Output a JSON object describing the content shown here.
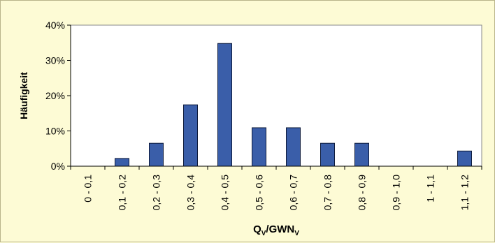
{
  "chart_data": {
    "type": "bar",
    "categories": [
      "0 - 0,1",
      "0,1 - 0,2",
      "0,2 - 0,3",
      "0,3 - 0,4",
      "0,4 - 0,5",
      "0,5 - 0,6",
      "0,6 - 0,7",
      "0,7 - 0,8",
      "0,8 - 0,9",
      "0,9 - 1,0",
      "1 - 1,1",
      "1,1 - 1,2"
    ],
    "values": [
      0,
      2.2,
      6.5,
      17.4,
      34.8,
      10.9,
      10.9,
      6.5,
      6.5,
      0,
      0,
      4.3
    ],
    "ylim": [
      0,
      40
    ],
    "yticks": [
      0,
      10,
      20,
      30,
      40
    ],
    "ytick_labels": [
      "0%",
      "10%",
      "20%",
      "30%",
      "40%"
    ],
    "ylabel": "Häufigkeit",
    "xlabel": {
      "main": "Q",
      "sub1": "V",
      "mid": "/GWN",
      "sub2": "V"
    },
    "grid": false,
    "legend": "none",
    "bar_color": "#3a5ea9",
    "bar_edge_color": "#0d1a3a",
    "plot_background": "#ffffff"
  }
}
